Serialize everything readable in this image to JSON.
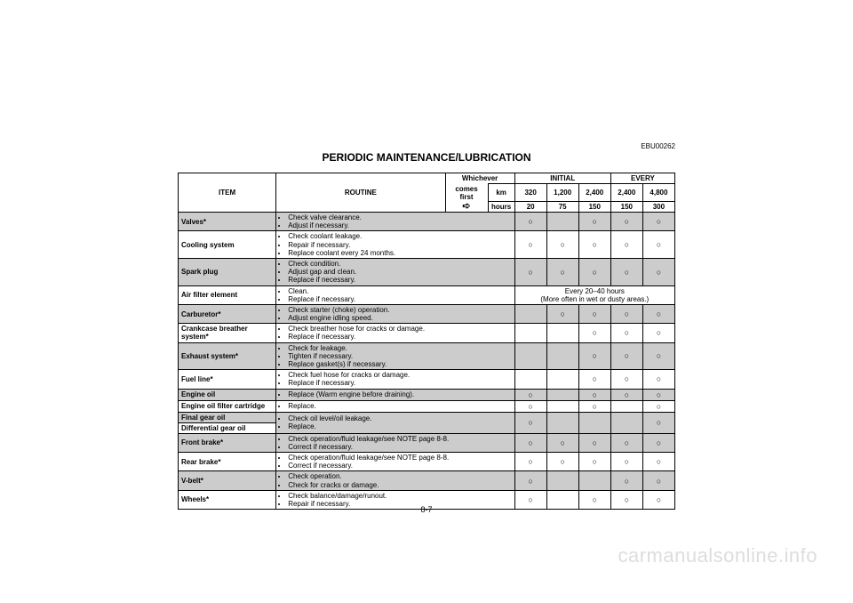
{
  "doc": {
    "code": "EBU00262",
    "title": "PERIODIC MAINTENANCE/LUBRICATION",
    "page": "8-7",
    "watermark": "carmanualsonline.info"
  },
  "hdr": {
    "item": "ITEM",
    "routine": "ROUTINE",
    "whichever": "Whichever",
    "comes_first": "comes first",
    "arrow": "➪",
    "initial": "INITIAL",
    "every": "EVERY",
    "km": "km",
    "hours": "hours",
    "km_vals": [
      "320",
      "1,200",
      "2,400",
      "2,400",
      "4,800"
    ],
    "hr_vals": [
      "20",
      "75",
      "150",
      "150",
      "300"
    ]
  },
  "mark": "○",
  "air_note_top": "Every 20–40 hours",
  "air_note_bot": "(More often in wet or dusty areas.)",
  "rows": {
    "valves": {
      "item": "Valves*",
      "r": [
        "Check valve clearance.",
        "Adjust if necessary."
      ],
      "marks": [
        1,
        0,
        1,
        1,
        1
      ]
    },
    "cooling": {
      "item": "Cooling system",
      "r": [
        "Check coolant leakage.",
        "Repair if necessary.",
        "Replace coolant every 24 months."
      ],
      "marks": [
        1,
        1,
        1,
        1,
        1
      ]
    },
    "spark": {
      "item": "Spark plug",
      "r": [
        "Check condition.",
        "Adjust gap and clean.",
        "Replace if necessary."
      ],
      "marks": [
        1,
        1,
        1,
        1,
        1
      ]
    },
    "air": {
      "item": "Air filter element",
      "r": [
        "Clean.",
        "Replace if necessary."
      ]
    },
    "carb": {
      "item": "Carburetor*",
      "r": [
        "Check starter (choke) operation.",
        "Adjust engine idling speed."
      ],
      "marks": [
        0,
        1,
        1,
        1,
        1
      ]
    },
    "crank": {
      "item": "Crankcase breather system*",
      "r": [
        "Check breather hose for cracks or damage.",
        "Replace if necessary."
      ],
      "marks": [
        0,
        0,
        1,
        1,
        1
      ]
    },
    "exhaust": {
      "item": "Exhaust system*",
      "r": [
        "Check for leakage.",
        "Tighten if necessary.",
        "Replace gasket(s) if necessary."
      ],
      "marks": [
        0,
        0,
        1,
        1,
        1
      ]
    },
    "fuel": {
      "item": "Fuel line*",
      "r": [
        "Check fuel hose for cracks or damage.",
        "Replace if necessary."
      ],
      "marks": [
        0,
        0,
        1,
        1,
        1
      ]
    },
    "eoil": {
      "item": "Engine oil",
      "r": [
        "Replace (Warm engine before draining)."
      ],
      "marks": [
        1,
        0,
        1,
        1,
        1
      ]
    },
    "eoilf": {
      "item": "Engine oil filter cartridge",
      "r": [
        "Replace."
      ],
      "marks": [
        1,
        0,
        1,
        0,
        1
      ]
    },
    "fgear": {
      "item": "Final gear oil",
      "r": [
        "Check oil level/oil leakage.",
        "Replace."
      ],
      "marks": [
        1,
        0,
        0,
        0,
        1
      ]
    },
    "dgear": {
      "item": "Differential gear oil"
    },
    "fbrake": {
      "item": "Front brake*",
      "r": [
        "Check operation/fluid leakage/see NOTE page 8-8.",
        "Correct if necessary."
      ],
      "marks": [
        1,
        1,
        1,
        1,
        1
      ]
    },
    "rbrake": {
      "item": "Rear brake*",
      "r": [
        "Check operation/fluid leakage/see NOTE page 8-8.",
        "Correct if necessary."
      ],
      "marks": [
        1,
        1,
        1,
        1,
        1
      ]
    },
    "vbelt": {
      "item": "V-belt*",
      "r": [
        "Check operation.",
        "Check for cracks or damage."
      ],
      "marks": [
        1,
        0,
        0,
        1,
        1
      ]
    },
    "wheels": {
      "item": "Wheels*",
      "r": [
        "Check balance/damage/runout.",
        "Repair if necessary."
      ],
      "marks": [
        1,
        0,
        1,
        1,
        1
      ]
    }
  },
  "colors": {
    "shade": "#cccccc",
    "border": "#000000",
    "text": "#000000",
    "watermark": "#dddddd"
  }
}
